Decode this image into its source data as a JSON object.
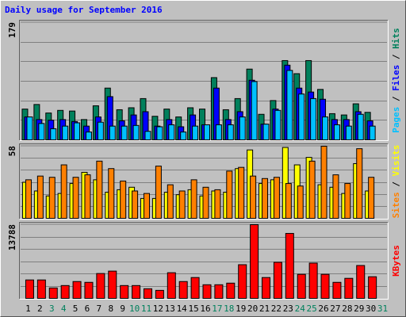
{
  "chart_data": [
    {
      "type": "bar",
      "title": "Daily usage for September 2016",
      "title_color": "#0000ff",
      "ylim": [
        0,
        179
      ],
      "yticks": [
        179
      ],
      "legend_separator": " / ",
      "separator_color": "#000000",
      "series": [
        {
          "name": "Pages",
          "color": "#00c0ff",
          "values": [
            35,
            25,
            17,
            21,
            26,
            12,
            27,
            21,
            21,
            22,
            13,
            20,
            23,
            12,
            21,
            23,
            23,
            23,
            35,
            89,
            24,
            45,
            106,
            70,
            63,
            35,
            23,
            21,
            39,
            21,
            0
          ]
        },
        {
          "name": "Files",
          "color": "#0000ff",
          "values": [
            35,
            31,
            30,
            31,
            28,
            21,
            35,
            66,
            29,
            38,
            43,
            21,
            31,
            20,
            38,
            23,
            79,
            31,
            43,
            91,
            24,
            47,
            114,
            79,
            73,
            62,
            31,
            31,
            43,
            29,
            0
          ]
        },
        {
          "name": "Hits",
          "color": "#00805c",
          "values": [
            47,
            54,
            41,
            45,
            44,
            31,
            52,
            79,
            46,
            49,
            63,
            36,
            47,
            35,
            49,
            47,
            95,
            46,
            63,
            108,
            39,
            60,
            121,
            101,
            121,
            77,
            40,
            38,
            55,
            42,
            0
          ]
        }
      ]
    },
    {
      "type": "bar",
      "ylim": [
        0,
        58
      ],
      "yticks": [
        58
      ],
      "legend_separator": " / ",
      "separator_color": "#000000",
      "series": [
        {
          "name": "Sites",
          "color": "#ff8000",
          "values": [
            31,
            34,
            33,
            43,
            33,
            35,
            46,
            40,
            30,
            22,
            20,
            42,
            27,
            22,
            31,
            25,
            23,
            38,
            41,
            34,
            32,
            33,
            28,
            26,
            46,
            58,
            35,
            28,
            56,
            33,
            0
          ]
        },
        {
          "name": "Visits",
          "color": "#ffff00",
          "values": [
            29,
            22,
            18,
            20,
            28,
            37,
            31,
            21,
            23,
            25,
            16,
            16,
            21,
            19,
            23,
            18,
            22,
            21,
            40,
            55,
            28,
            31,
            57,
            43,
            49,
            27,
            25,
            20,
            44,
            22,
            0
          ]
        }
      ]
    },
    {
      "type": "bar",
      "ylim": [
        0,
        13788
      ],
      "yticks": [
        13788
      ],
      "categories": [
        "1",
        "2",
        "3",
        "4",
        "5",
        "6",
        "7",
        "8",
        "9",
        "10",
        "11",
        "12",
        "13",
        "14",
        "15",
        "16",
        "17",
        "18",
        "19",
        "20",
        "21",
        "22",
        "23",
        "24",
        "25",
        "26",
        "27",
        "28",
        "29",
        "30",
        "31"
      ],
      "category_colors": [
        "#000000",
        "#000000",
        "#00805c",
        "#00805c",
        "#000000",
        "#000000",
        "#000000",
        "#000000",
        "#000000",
        "#00805c",
        "#00805c",
        "#000000",
        "#000000",
        "#000000",
        "#000000",
        "#000000",
        "#00805c",
        "#00805c",
        "#000000",
        "#000000",
        "#000000",
        "#000000",
        "#000000",
        "#00805c",
        "#00805c",
        "#000000",
        "#000000",
        "#000000",
        "#000000",
        "#000000",
        "#00805c"
      ],
      "series": [
        {
          "name": "KBytes",
          "color": "#ff0000",
          "values": [
            3450,
            3450,
            1950,
            2400,
            3150,
            3000,
            4650,
            5100,
            2400,
            2400,
            1800,
            1500,
            4800,
            3150,
            3900,
            2550,
            2550,
            2850,
            6300,
            13788,
            3900,
            6750,
            12150,
            4500,
            6600,
            4500,
            3000,
            3750,
            6150,
            4050,
            0
          ]
        }
      ]
    }
  ]
}
